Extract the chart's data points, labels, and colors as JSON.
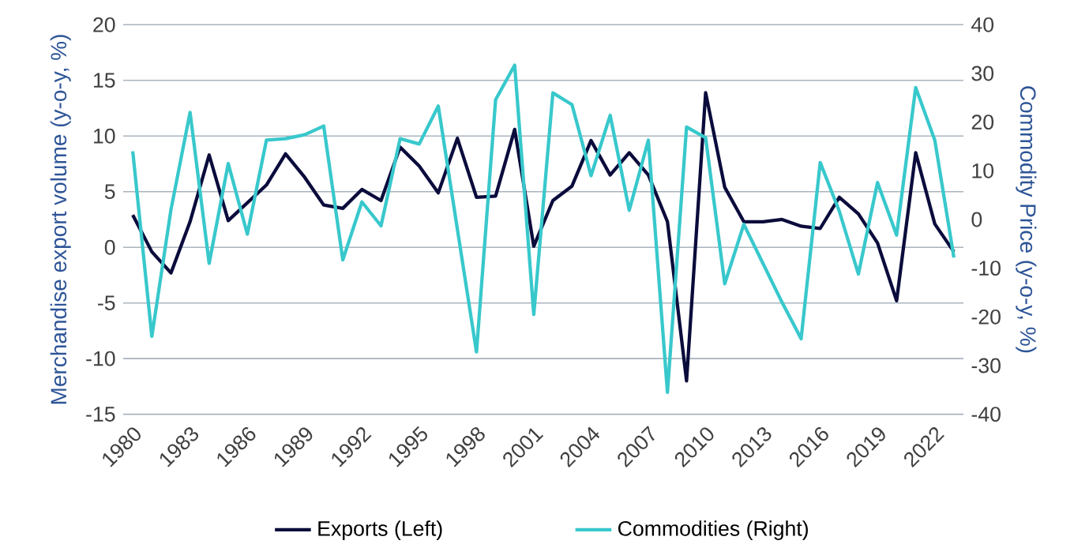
{
  "chart_data": {
    "type": "line",
    "ylabel": "Merchandise export volume (y-o-y, %)",
    "y2label": "Commodity Price (y-o-y,  %)",
    "categories": [
      "1980",
      null,
      null,
      "1983",
      null,
      null,
      "1986",
      null,
      null,
      "1989",
      null,
      null,
      "1992",
      null,
      null,
      "1995",
      null,
      null,
      "1998",
      null,
      null,
      "2001",
      null,
      null,
      "2004",
      null,
      null,
      "2007",
      null,
      null,
      "2010",
      null,
      null,
      "2013",
      null,
      null,
      "2016",
      null,
      null,
      "2019",
      null,
      null,
      "2022",
      null
    ],
    "series": [
      {
        "name": "Exports (Left)",
        "color": "#0b0c3c",
        "axis": "y",
        "values": [
          2.9,
          -0.4,
          -2.3,
          2.3,
          8.3,
          2.4,
          4,
          5.6,
          8.4,
          6.3,
          3.8,
          3.5,
          5.2,
          4.2,
          9.0,
          7.3,
          4.9,
          9.8,
          4.5,
          4.6,
          10.6,
          0.1,
          4.2,
          5.5,
          9.6,
          6.5,
          8.5,
          6.5,
          2.3,
          -12,
          13.9,
          5.4,
          2.3,
          2.3,
          2.5,
          1.9,
          1.7,
          4.5,
          3,
          0.4,
          -4.8,
          8.5,
          2.1,
          -0.4
        ]
      },
      {
        "name": "Commodities (Right)",
        "color": "#38c8cc",
        "axis": "y2",
        "values": [
          14,
          -24,
          2,
          22,
          -9,
          11.5,
          -3,
          16.3,
          16.6,
          17.4,
          19.2,
          -8.3,
          3.6,
          -1.3,
          16.6,
          15.5,
          23.3,
          -2,
          -27.2,
          24.6,
          31.7,
          -19.5,
          26,
          23.6,
          9,
          21.4,
          1.9,
          16.3,
          -35.5,
          19,
          16.8,
          -13.2,
          -1,
          -9,
          -17,
          -24.5,
          11.7,
          1.7,
          -11.2,
          7.6,
          -3.2,
          27.1,
          16.3,
          -7.8
        ]
      }
    ],
    "ylim": [
      -15,
      20
    ],
    "yticks": [
      -15,
      -10,
      -5,
      0,
      5,
      10,
      15,
      20
    ],
    "y2lim": [
      -40,
      40
    ],
    "y2ticks": [
      -40,
      -30,
      -20,
      -10,
      0,
      10,
      20,
      30,
      40
    ],
    "grid": "y",
    "legend": "bottom",
    "marker": "none",
    "line_style": "solid"
  }
}
